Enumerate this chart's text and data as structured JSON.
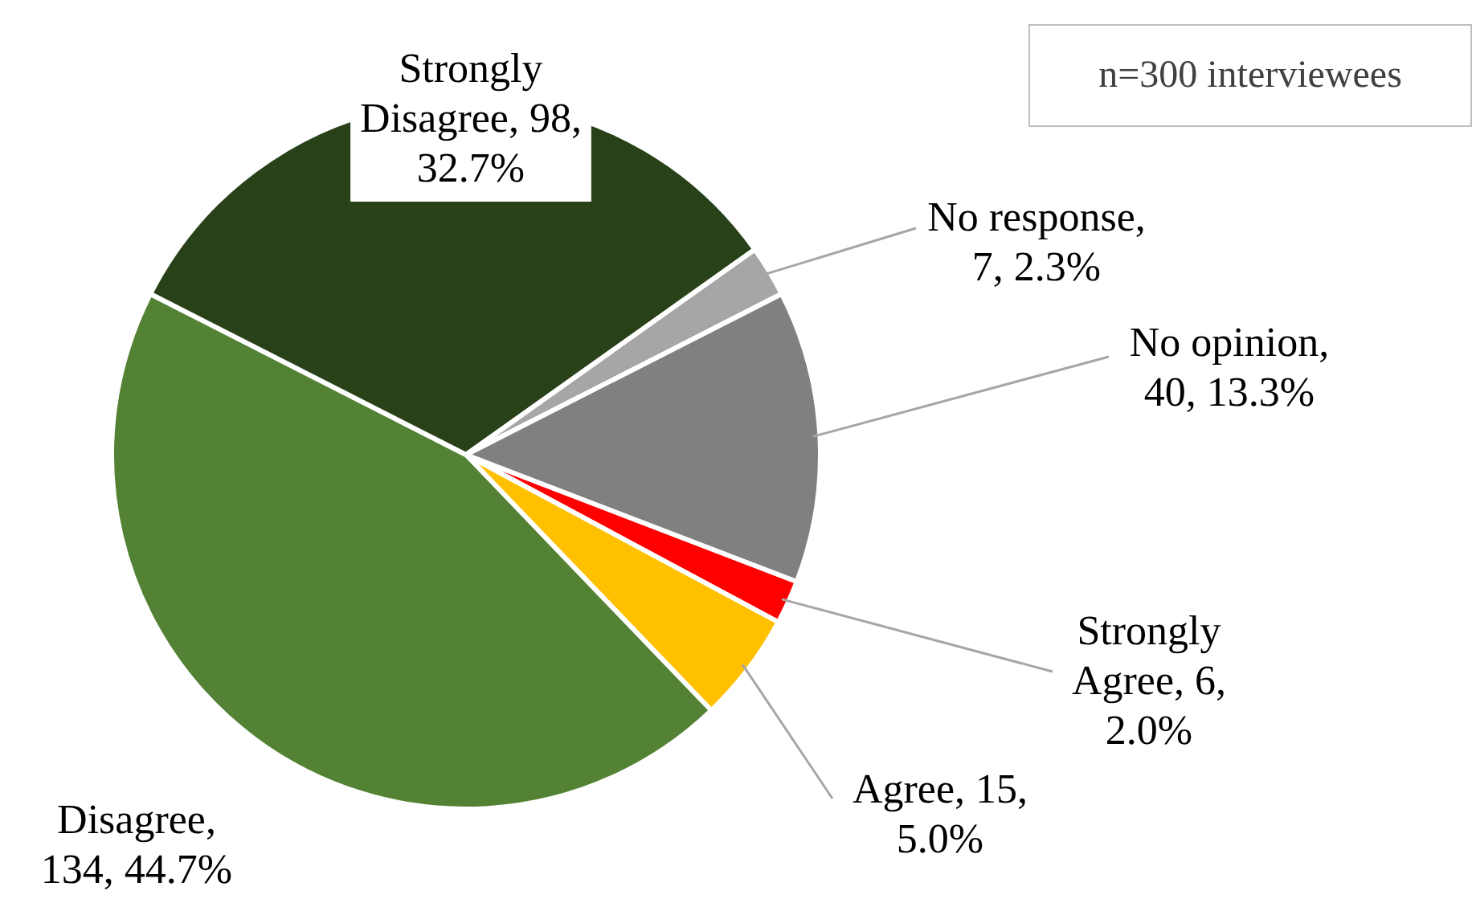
{
  "chart_data": {
    "type": "pie",
    "categories": [
      "Strongly Agree",
      "Agree",
      "Disagree",
      "Strongly Disagree",
      "No response",
      "No opinion"
    ],
    "values": [
      6,
      15,
      134,
      98,
      7,
      40
    ],
    "colors": [
      "#ff0000",
      "#ffc000",
      "#548235",
      "#294119",
      "#a6a6a6",
      "#808080"
    ],
    "value_labels": [
      ", 6, 2.0%",
      ", 15, 5.0%",
      ", 134, 44.7%",
      ", 98, 32.7%",
      ", 7, 2.3%",
      ", 40, 13.3%"
    ],
    "annotations": [
      "n=300 interviewees"
    ],
    "legend": false
  }
}
